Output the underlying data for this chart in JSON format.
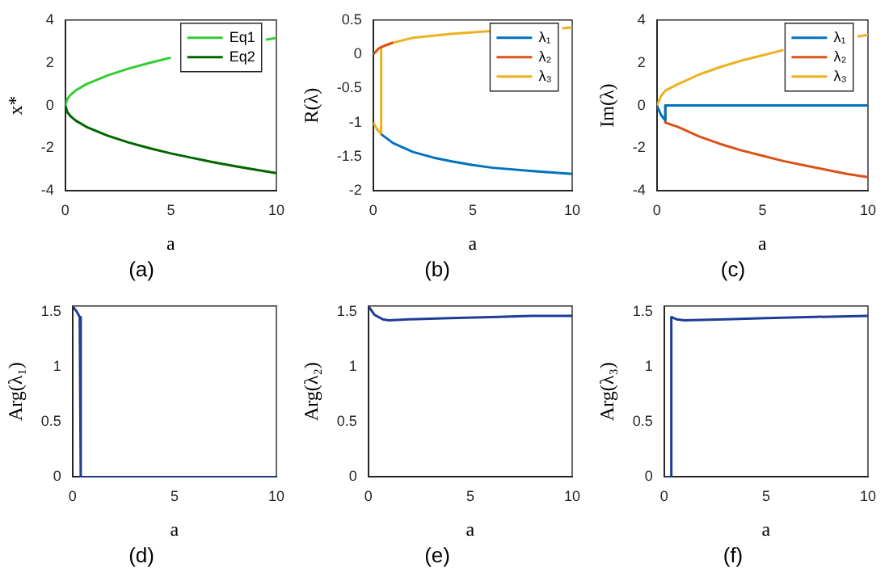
{
  "chart_data": [
    {
      "type": "line",
      "title": "(a)",
      "xlabel": "a",
      "ylabel": "x*",
      "xlim": [
        0,
        10
      ],
      "xticks": [
        0,
        5,
        10
      ],
      "ylim": [
        -4,
        4
      ],
      "yticks": [
        -4,
        -2,
        0,
        2,
        4
      ],
      "legend": "top right",
      "series": [
        {
          "name": "Eq1",
          "color": "#33cc33",
          "x": [
            0,
            0.1,
            0.25,
            0.5,
            1,
            2,
            3,
            4,
            5,
            6,
            7,
            8,
            9,
            9.5,
            10
          ],
          "values": [
            0,
            0.32,
            0.5,
            0.71,
            1,
            1.41,
            1.73,
            2,
            2.24,
            null,
            null,
            null,
            null,
            3.08,
            3.16
          ]
        },
        {
          "name": "Eq2",
          "color": "#006600",
          "x": [
            0,
            0.1,
            0.25,
            0.5,
            1,
            2,
            3,
            4,
            5,
            6,
            7,
            8,
            9,
            10
          ],
          "values": [
            0,
            -0.32,
            -0.5,
            -0.71,
            -1,
            -1.41,
            -1.73,
            -2,
            -2.24,
            -2.45,
            -2.65,
            -2.83,
            -3,
            -3.16
          ]
        }
      ]
    },
    {
      "type": "line",
      "title": "(b)",
      "xlabel": "a",
      "ylabel": "R(λ)",
      "xlim": [
        0,
        10
      ],
      "xticks": [
        0,
        5,
        10
      ],
      "ylim": [
        -2,
        0.5
      ],
      "yticks": [
        -2,
        -1.5,
        -1,
        -0.5,
        0,
        0.5
      ],
      "legend": "top right",
      "series": [
        {
          "name": "λ₁",
          "color": "#0072bd",
          "x": [
            0.4,
            1,
            2,
            3,
            4,
            5,
            6,
            8,
            10
          ],
          "values": [
            -1.17,
            -1.3,
            -1.43,
            -1.51,
            -1.57,
            -1.62,
            -1.66,
            -1.71,
            -1.75
          ]
        },
        {
          "name": "λ₂",
          "color": "#d95319",
          "x": [
            0,
            0.3,
            0.6,
            1
          ],
          "values": [
            0,
            0.09,
            0.13,
            0.17
          ]
        },
        {
          "name": "λ₃",
          "color": "#edb120",
          "x": [
            0,
            0.2,
            0.4,
            0.4,
            1,
            2,
            4,
            6,
            8,
            9.5,
            10
          ],
          "values": [
            -1,
            -1.1,
            -1.17,
            0.1,
            0.17,
            0.24,
            0.3,
            0.34,
            null,
            0.38,
            0.39
          ]
        }
      ]
    },
    {
      "type": "line",
      "title": "(c)",
      "xlabel": "a",
      "ylabel": "Im(λ)",
      "xlim": [
        0,
        10
      ],
      "xticks": [
        0,
        5,
        10
      ],
      "ylim": [
        -4,
        4
      ],
      "yticks": [
        -4,
        -2,
        0,
        2,
        4
      ],
      "legend": "top right",
      "series": [
        {
          "name": "λ₁",
          "color": "#0072bd",
          "x": [
            0,
            0.2,
            0.4,
            0.4,
            10
          ],
          "values": [
            0,
            -0.45,
            -0.7,
            0,
            0
          ]
        },
        {
          "name": "λ₂",
          "color": "#d95319",
          "x": [
            0.4,
            0.4,
            1,
            2,
            3,
            4,
            5,
            6,
            7,
            8,
            9,
            10
          ],
          "values": [
            0,
            -0.8,
            -1,
            -1.45,
            -1.8,
            -2.1,
            -2.35,
            -2.6,
            -2.8,
            -3,
            -3.2,
            -3.35
          ]
        },
        {
          "name": "λ₃",
          "color": "#edb120",
          "x": [
            0,
            0.2,
            0.4,
            1,
            2,
            3,
            4,
            5,
            6,
            7,
            8,
            9,
            9.5,
            10
          ],
          "values": [
            0,
            0.45,
            0.7,
            1,
            1.45,
            1.8,
            2.1,
            2.35,
            2.6,
            null,
            null,
            null,
            3.23,
            3.3
          ]
        }
      ]
    },
    {
      "type": "line",
      "title": "(d)",
      "xlabel": "a",
      "ylabel": "Arg(λ₁)",
      "xlim": [
        0,
        10
      ],
      "xticks": [
        0,
        5,
        10
      ],
      "ylim": [
        0,
        1.55
      ],
      "yticks": [
        0,
        0.5,
        1,
        1.5
      ],
      "series": [
        {
          "color": "#1f3c99",
          "x": [
            0,
            0.2,
            0.35,
            0.4,
            10
          ],
          "values": [
            1.55,
            1.5,
            1.45,
            0,
            0
          ]
        }
      ]
    },
    {
      "type": "line",
      "title": "(e)",
      "xlabel": "a",
      "ylabel": "Arg(λ₂)",
      "xlim": [
        0,
        10
      ],
      "xticks": [
        0,
        5,
        10
      ],
      "ylim": [
        0,
        1.55
      ],
      "yticks": [
        0,
        0.5,
        1,
        1.5
      ],
      "series": [
        {
          "color": "#1f3c99",
          "x": [
            0,
            0.3,
            0.7,
            1,
            2,
            4,
            6,
            8,
            10
          ],
          "values": [
            1.55,
            1.47,
            1.43,
            1.42,
            1.43,
            1.44,
            1.45,
            1.46,
            1.46
          ]
        }
      ]
    },
    {
      "type": "line",
      "title": "(f)",
      "xlabel": "a",
      "ylabel": "Arg(λ₃)",
      "xlim": [
        0,
        10
      ],
      "xticks": [
        0,
        5,
        10
      ],
      "ylim": [
        0,
        1.55
      ],
      "yticks": [
        0,
        0.5,
        1,
        1.5
      ],
      "series": [
        {
          "color": "#1f3c99",
          "x": [
            0,
            0.35,
            0.35,
            0.6,
            1,
            3,
            5,
            7,
            10
          ],
          "values": [
            0,
            0,
            1.45,
            1.43,
            1.42,
            1.43,
            1.44,
            1.45,
            1.46
          ]
        }
      ]
    }
  ]
}
